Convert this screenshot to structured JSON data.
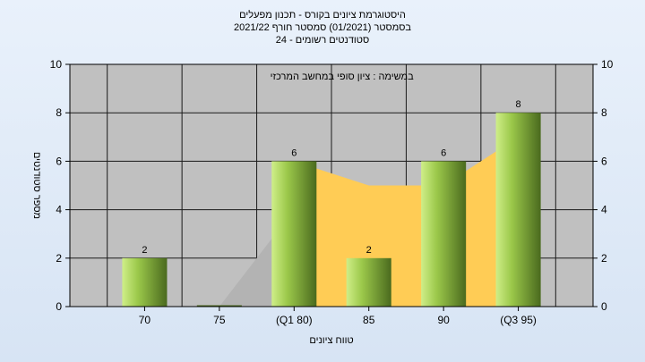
{
  "header": {
    "line1": "היסטוגרמת ציונים בקורס - תכנון מפעלים",
    "line2": "בסמסטר  (01/2021)  סמסטר חורף 2021/22",
    "line3": "סטודנטים רשומים - 24"
  },
  "chart_data": {
    "type": "bar",
    "categories": [
      "70",
      "75",
      "(Q1 80)",
      "85",
      "90",
      "(Q3 95)"
    ],
    "values": [
      2,
      0,
      6,
      2,
      6,
      8
    ],
    "value_labels": [
      "2",
      "",
      "6",
      "2",
      "6",
      "8"
    ],
    "area_series": {
      "grey": [
        0,
        0,
        4,
        null,
        null,
        null
      ],
      "orange": [
        null,
        null,
        6,
        5,
        5,
        7
      ]
    },
    "annotation": "במשימה : ציון סופי במחשב המרכזי",
    "xlabel": "טווח ציונים",
    "ylabel": "מספר סטודנטים",
    "ylim": [
      0,
      10
    ],
    "yticks": [
      0,
      2,
      4,
      6,
      8,
      10
    ],
    "grid": true,
    "colors": {
      "plot_bg": "#c0c0c0",
      "grid": "#1a1a1a",
      "grey_area": "#b3b3b3",
      "orange_area": "#ffcc55",
      "bar_light": "#cfee88",
      "bar_mid": "#9bc84a",
      "bar_dark": "#4a6a1e"
    }
  }
}
